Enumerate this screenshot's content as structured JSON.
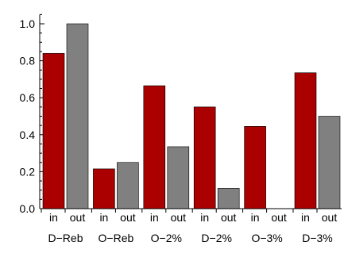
{
  "chart_data": {
    "type": "bar",
    "categories": [
      "D−Reb",
      "O−Reb",
      "O−2%",
      "D−2%",
      "O−3%",
      "D−3%"
    ],
    "sublabels": [
      "in",
      "out"
    ],
    "series": [
      {
        "values": [
          0.84,
          0.215,
          0.665,
          0.55,
          0.445,
          0.735
        ],
        "color": "#aa0000"
      },
      {
        "values": [
          1.0,
          0.25,
          0.335,
          0.11,
          0.0,
          0.5
        ],
        "color": "#808080"
      }
    ],
    "ylim": [
      0,
      1.05
    ],
    "yticks": [
      0.0,
      0.2,
      0.4,
      0.6,
      0.8,
      1.0
    ],
    "ytick_labels": [
      "0.0",
      "0.2",
      "0.4",
      "0.6",
      "0.8",
      "1.0"
    ],
    "title": "",
    "xlabel": "",
    "ylabel": "",
    "grid": false,
    "legend": "none"
  }
}
